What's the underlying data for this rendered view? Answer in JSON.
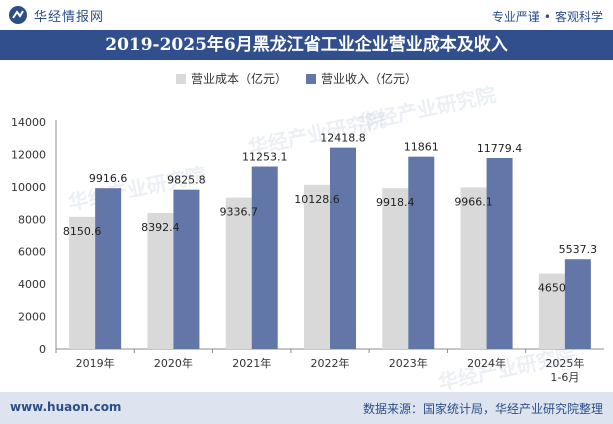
{
  "header": {
    "brand": "华经情报网",
    "tagline_left": "专业严谨",
    "tagline_right": "客观科学"
  },
  "footer": {
    "url": "www.huaon.com",
    "source": "数据来源：国家统计局，华经产业研究院整理"
  },
  "colors": {
    "title_bg": "#304f8c",
    "footer_bg": "#dde4ef",
    "cost": "#d9d9d9",
    "income": "#6277a8"
  },
  "chart_data": {
    "type": "bar",
    "title": "2019-2025年6月黑龙江省工业企业营业成本及收入",
    "categories": [
      "2019年",
      "2020年",
      "2021年",
      "2022年",
      "2023年",
      "2024年",
      "2025年\n1-6月"
    ],
    "series": [
      {
        "name": "营业成本（亿元）",
        "values": [
          8150.6,
          8392.4,
          9336.7,
          10128.6,
          9918.4,
          9966.1,
          4650
        ]
      },
      {
        "name": "营业收入（亿元）",
        "values": [
          9916.6,
          9825.8,
          11253.1,
          12418.8,
          11861,
          11779.4,
          5537.3
        ]
      }
    ],
    "value_labels": {
      "营业成本（亿元）": [
        "8150.6",
        "8392.4",
        "9336.7",
        "10128.6",
        "9918.4",
        "9966.1",
        "4650"
      ],
      "营业收入（亿元）": [
        "9916.6",
        "9825.8",
        "11253.1",
        "12418.8",
        "11861",
        "11779.4",
        "5537.3"
      ]
    },
    "ylim": [
      0,
      14000
    ],
    "yticks": [
      0,
      2000,
      4000,
      6000,
      8000,
      10000,
      12000,
      14000
    ],
    "legend_position": "top-center",
    "grid": false
  }
}
